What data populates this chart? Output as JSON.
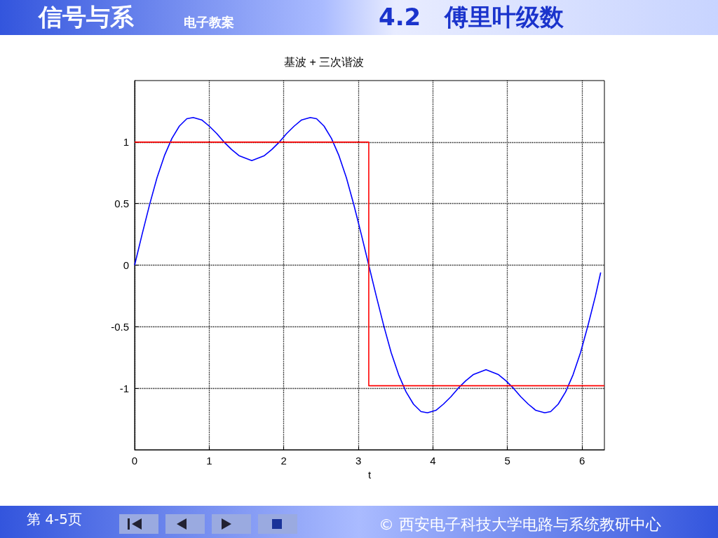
{
  "chart_data": {
    "type": "line",
    "title": "基波 + 三次谐波",
    "xlabel": "t",
    "annotations": [
      "信号与系",
      "电子教案",
      "4.2　傅里叶级数",
      "第 4-5页",
      "© 西安电子科技大学电路与系统教研中心"
    ],
    "xlim": [
      0,
      6.3
    ],
    "xticks": [
      0,
      1,
      2,
      3,
      4,
      5,
      6
    ],
    "ylim": [
      -1.5,
      1.5
    ],
    "yticks": [
      -1,
      -0.5,
      0,
      0.5,
      1
    ],
    "grid": true,
    "marker": "none",
    "line_style": "solid",
    "series": [
      {
        "color": "#0000ff",
        "x": [
          0,
          0.1,
          0.2,
          0.3,
          0.4,
          0.5,
          0.6,
          0.7,
          0.785,
          0.9,
          1.0,
          1.1,
          1.2,
          1.3,
          1.4,
          1.571,
          1.74,
          1.84,
          1.94,
          2.04,
          2.14,
          2.24,
          2.356,
          2.44,
          2.54,
          2.64,
          2.74,
          2.84,
          2.94,
          3.04,
          3.14,
          3.24,
          3.34,
          3.44,
          3.54,
          3.64,
          3.74,
          3.84,
          3.927,
          4.04,
          4.14,
          4.24,
          4.34,
          4.44,
          4.54,
          4.712,
          4.88,
          4.98,
          5.08,
          5.18,
          5.28,
          5.38,
          5.5,
          5.58,
          5.68,
          5.78,
          5.88,
          5.98,
          6.08,
          6.18,
          6.25
        ],
        "values": [
          0,
          0.25,
          0.49,
          0.71,
          0.89,
          1.03,
          1.13,
          1.19,
          1.2,
          1.18,
          1.13,
          1.07,
          1.0,
          0.94,
          0.89,
          0.85,
          0.89,
          0.94,
          1.0,
          1.07,
          1.13,
          1.18,
          1.2,
          1.19,
          1.13,
          1.03,
          0.89,
          0.71,
          0.49,
          0.25,
          0,
          -0.25,
          -0.49,
          -0.71,
          -0.89,
          -1.03,
          -1.13,
          -1.19,
          -1.2,
          -1.18,
          -1.13,
          -1.07,
          -1.0,
          -0.94,
          -0.89,
          -0.85,
          -0.89,
          -0.94,
          -1.0,
          -1.07,
          -1.13,
          -1.18,
          -1.2,
          -1.19,
          -1.13,
          -1.03,
          -0.89,
          -0.71,
          -0.49,
          -0.25,
          -0.06
        ]
      },
      {
        "color": "#ff0000",
        "x": [
          0,
          3.14,
          3.14,
          6.3
        ],
        "values": [
          1,
          1,
          -0.98,
          -0.98
        ]
      }
    ]
  }
}
